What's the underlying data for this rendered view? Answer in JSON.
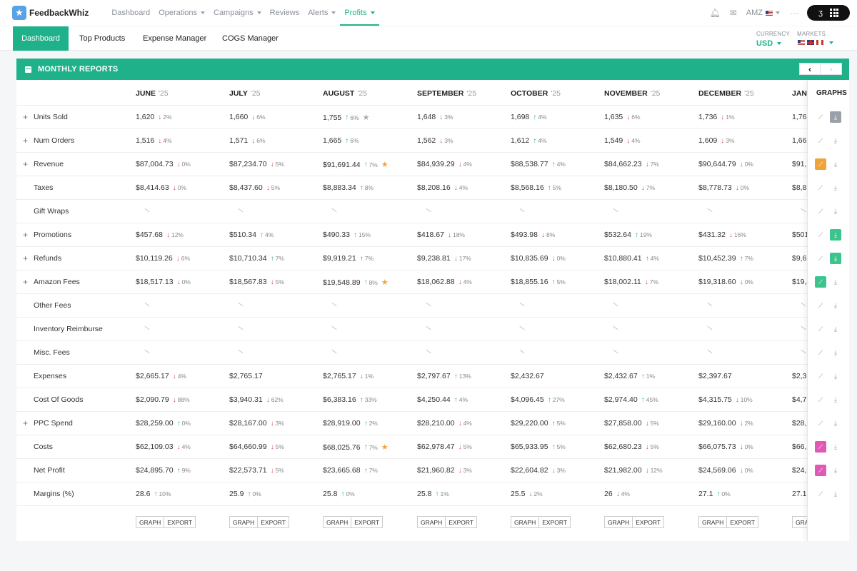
{
  "app": {
    "name": "FeedbackWhiz",
    "logo_icon": "star-icon"
  },
  "nav": {
    "items": [
      {
        "label": "Dashboard",
        "caret": false,
        "active": false
      },
      {
        "label": "Operations",
        "caret": true,
        "active": false
      },
      {
        "label": "Campaigns",
        "caret": true,
        "active": false
      },
      {
        "label": "Reviews",
        "caret": false,
        "active": false
      },
      {
        "label": "Alerts",
        "caret": true,
        "active": false
      },
      {
        "label": "Profits",
        "caret": true,
        "active": true
      }
    ],
    "account": "AMZ",
    "more": "···"
  },
  "subnav": {
    "tabs": [
      "Dashboard",
      "Top Products",
      "Expense Manager",
      "COGS Manager"
    ],
    "active_index": 0,
    "currency_label": "CURRENCY",
    "currency_value": "USD",
    "markets_label": "MARKETS"
  },
  "panel": {
    "title": "MONTHLY REPORTS",
    "prev": "‹",
    "next": "›",
    "graphs_header": "GRAPHS"
  },
  "months": [
    {
      "name": "JUNE",
      "year": "'25"
    },
    {
      "name": "JULY",
      "year": "'25"
    },
    {
      "name": "AUGUST",
      "year": "'25"
    },
    {
      "name": "SEPTEMBER",
      "year": "'25"
    },
    {
      "name": "OCTOBER",
      "year": "'25"
    },
    {
      "name": "NOVEMBER",
      "year": "'25"
    },
    {
      "name": "DECEMBER",
      "year": "'25"
    },
    {
      "name": "JANU",
      "year": ""
    }
  ],
  "rows": [
    {
      "label": "Units Sold",
      "expandable": true,
      "cells": [
        {
          "v": "1,620",
          "d": "down",
          "p": "2%"
        },
        {
          "v": "1,660",
          "d": "down",
          "p": "6%"
        },
        {
          "v": "1,755",
          "d": "up",
          "p": "6%",
          "star": "grey"
        },
        {
          "v": "1,648",
          "d": "down",
          "p": "3%"
        },
        {
          "v": "1,698",
          "d": "up",
          "p": "4%"
        },
        {
          "v": "1,635",
          "d": "down",
          "p": "6%"
        },
        {
          "v": "1,736",
          "d": "down",
          "p": "1%"
        },
        {
          "v": "1,76"
        }
      ]
    },
    {
      "label": "Num Orders",
      "expandable": true,
      "cells": [
        {
          "v": "1,516",
          "d": "down",
          "p": "4%"
        },
        {
          "v": "1,571",
          "d": "down",
          "p": "6%"
        },
        {
          "v": "1,665",
          "d": "up",
          "p": "6%"
        },
        {
          "v": "1,562",
          "d": "down",
          "p": "3%"
        },
        {
          "v": "1,612",
          "d": "up",
          "p": "4%"
        },
        {
          "v": "1,549",
          "d": "down",
          "p": "4%"
        },
        {
          "v": "1,609",
          "d": "down",
          "p": "3%"
        },
        {
          "v": "1,66"
        }
      ]
    },
    {
      "label": "Revenue",
      "expandable": true,
      "cells": [
        {
          "v": "$87,004.73",
          "d": "down",
          "p": "0%"
        },
        {
          "v": "$87,234.70",
          "d": "down",
          "p": "5%"
        },
        {
          "v": "$91,691.44",
          "d": "up",
          "p": "7%",
          "star": "gold"
        },
        {
          "v": "$84,939.29",
          "d": "down",
          "p": "4%"
        },
        {
          "v": "$88,538.77",
          "d": "up",
          "p": "4%"
        },
        {
          "v": "$84,662.23",
          "d": "down",
          "p": "7%"
        },
        {
          "v": "$90,644.79",
          "d": "down",
          "p": "0%"
        },
        {
          "v": "$91,"
        }
      ]
    },
    {
      "label": "Taxes",
      "expandable": false,
      "cells": [
        {
          "v": "$8,414.63",
          "d": "down",
          "p": "0%"
        },
        {
          "v": "$8,437.60",
          "d": "down",
          "p": "5%"
        },
        {
          "v": "$8,883.34",
          "d": "up",
          "p": "8%"
        },
        {
          "v": "$8,208.16",
          "d": "down",
          "p": "4%"
        },
        {
          "v": "$8,568.16",
          "d": "up",
          "p": "5%"
        },
        {
          "v": "$8,180.50",
          "d": "down",
          "p": "7%"
        },
        {
          "v": "$8,778.73",
          "d": "down",
          "p": "0%"
        },
        {
          "v": "$8,8"
        }
      ]
    },
    {
      "label": "Gift Wraps",
      "expandable": false,
      "nodata": true,
      "cells": []
    },
    {
      "label": "Promotions",
      "expandable": true,
      "cells": [
        {
          "v": "$457.68",
          "d": "down",
          "p": "12%"
        },
        {
          "v": "$510.34",
          "d": "up",
          "p": "4%"
        },
        {
          "v": "$490.33",
          "d": "up",
          "p": "15%"
        },
        {
          "v": "$418.67",
          "d": "down",
          "p": "18%"
        },
        {
          "v": "$493.98",
          "d": "down",
          "p": "8%"
        },
        {
          "v": "$532.64",
          "d": "up",
          "p": "19%"
        },
        {
          "v": "$431.32",
          "d": "down",
          "p": "16%"
        },
        {
          "v": "$501"
        }
      ]
    },
    {
      "label": "Refunds",
      "expandable": true,
      "cells": [
        {
          "v": "$10,119.26",
          "d": "down",
          "p": "6%"
        },
        {
          "v": "$10,710.34",
          "d": "up",
          "p": "7%"
        },
        {
          "v": "$9,919.21",
          "d": "up",
          "p": "7%"
        },
        {
          "v": "$9,238.81",
          "d": "down",
          "p": "17%"
        },
        {
          "v": "$10,835.69",
          "d": "down",
          "p": "0%"
        },
        {
          "v": "$10,880.41",
          "d": "up",
          "p": "4%"
        },
        {
          "v": "$10,452.39",
          "d": "up",
          "p": "7%"
        },
        {
          "v": "$9,6"
        }
      ]
    },
    {
      "label": "Amazon Fees",
      "expandable": true,
      "cells": [
        {
          "v": "$18,517.13",
          "d": "down",
          "p": "0%"
        },
        {
          "v": "$18,567.83",
          "d": "down",
          "p": "5%"
        },
        {
          "v": "$19,548.89",
          "d": "up",
          "p": "8%",
          "star": "gold"
        },
        {
          "v": "$18,062.88",
          "d": "down",
          "p": "4%"
        },
        {
          "v": "$18,855.16",
          "d": "up",
          "p": "5%"
        },
        {
          "v": "$18,002.11",
          "d": "down",
          "p": "7%"
        },
        {
          "v": "$19,318.60",
          "d": "down",
          "p": "0%"
        },
        {
          "v": "$19,4"
        }
      ]
    },
    {
      "label": "Other Fees",
      "expandable": false,
      "nodata": true,
      "cells": []
    },
    {
      "label": "Inventory Reimburse",
      "expandable": false,
      "nodata": true,
      "cells": []
    },
    {
      "label": "Misc. Fees",
      "expandable": false,
      "nodata": true,
      "cells": []
    },
    {
      "label": "Expenses",
      "expandable": false,
      "cells": [
        {
          "v": "$2,665.17",
          "d": "down",
          "p": "4%"
        },
        {
          "v": "$2,765.17"
        },
        {
          "v": "$2,765.17",
          "d": "down",
          "p": "1%"
        },
        {
          "v": "$2,797.67",
          "d": "up",
          "p": "13%"
        },
        {
          "v": "$2,432.67"
        },
        {
          "v": "$2,432.67",
          "d": "up",
          "p": "1%"
        },
        {
          "v": "$2,397.67"
        },
        {
          "v": "$2,3"
        }
      ]
    },
    {
      "label": "Cost Of Goods",
      "expandable": false,
      "cells": [
        {
          "v": "$2,090.79",
          "d": "down",
          "p": "88%"
        },
        {
          "v": "$3,940.31",
          "d": "down",
          "p": "62%"
        },
        {
          "v": "$6,383.16",
          "d": "up",
          "p": "33%"
        },
        {
          "v": "$4,250.44",
          "d": "up",
          "p": "4%"
        },
        {
          "v": "$4,096.45",
          "d": "up",
          "p": "27%"
        },
        {
          "v": "$2,974.40",
          "d": "up",
          "p": "45%"
        },
        {
          "v": "$4,315.75",
          "d": "down",
          "p": "10%"
        },
        {
          "v": "$4,7"
        }
      ]
    },
    {
      "label": "PPC Spend",
      "expandable": true,
      "cells": [
        {
          "v": "$28,259.00",
          "d": "up",
          "p": "0%"
        },
        {
          "v": "$28,167.00",
          "d": "down",
          "p": "3%"
        },
        {
          "v": "$28,919.00",
          "d": "up",
          "p": "2%"
        },
        {
          "v": "$28,210.00",
          "d": "down",
          "p": "4%"
        },
        {
          "v": "$29,220.00",
          "d": "up",
          "p": "5%"
        },
        {
          "v": "$27,858.00",
          "d": "down",
          "p": "5%"
        },
        {
          "v": "$29,160.00",
          "d": "down",
          "p": "2%"
        },
        {
          "v": "$28,"
        }
      ]
    },
    {
      "label": "Costs",
      "expandable": false,
      "cells": [
        {
          "v": "$62,109.03",
          "d": "down",
          "p": "4%"
        },
        {
          "v": "$64,660.99",
          "d": "down",
          "p": "5%"
        },
        {
          "v": "$68,025.76",
          "d": "up",
          "p": "7%",
          "star": "gold"
        },
        {
          "v": "$62,978.47",
          "d": "down",
          "p": "5%"
        },
        {
          "v": "$65,933.95",
          "d": "up",
          "p": "5%"
        },
        {
          "v": "$62,680.23",
          "d": "down",
          "p": "5%"
        },
        {
          "v": "$66,075.73",
          "d": "down",
          "p": "0%"
        },
        {
          "v": "$66,3"
        }
      ]
    },
    {
      "label": "Net Profit",
      "expandable": false,
      "cells": [
        {
          "v": "$24,895.70",
          "d": "up",
          "p": "9%"
        },
        {
          "v": "$22,573.71",
          "d": "down",
          "p": "5%"
        },
        {
          "v": "$23,665.68",
          "d": "up",
          "p": "7%"
        },
        {
          "v": "$21,960.82",
          "d": "down",
          "p": "3%"
        },
        {
          "v": "$22,604.82",
          "d": "down",
          "p": "3%"
        },
        {
          "v": "$21,982.00",
          "d": "down",
          "p": "12%"
        },
        {
          "v": "$24,569.06",
          "d": "down",
          "p": "0%"
        },
        {
          "v": "$24,6"
        }
      ]
    },
    {
      "label": "Margins (%)",
      "expandable": false,
      "cells": [
        {
          "v": "28.6",
          "d": "up",
          "p": "10%"
        },
        {
          "v": "25.9",
          "d": "up",
          "p": "0%"
        },
        {
          "v": "25.8",
          "d": "up",
          "p": "0%"
        },
        {
          "v": "25.8",
          "d": "up",
          "p": "1%"
        },
        {
          "v": "25.5",
          "d": "down",
          "p": "2%"
        },
        {
          "v": "26",
          "d": "down",
          "p": "4%"
        },
        {
          "v": "27.1",
          "d": "up",
          "p": "0%"
        },
        {
          "v": "27.1"
        }
      ]
    }
  ],
  "graph_icons": [
    {
      "trend": "none",
      "dl": "solid-grey"
    },
    {
      "trend": "none",
      "dl": "none"
    },
    {
      "trend": "orange",
      "dl": "none"
    },
    {
      "trend": "none",
      "dl": "none"
    },
    {
      "trend": "none",
      "dl": "none"
    },
    {
      "trend": "none",
      "dl": "green"
    },
    {
      "trend": "none",
      "dl": "green"
    },
    {
      "trend": "green",
      "dl": "none"
    },
    {
      "trend": "none",
      "dl": "none"
    },
    {
      "trend": "none",
      "dl": "none"
    },
    {
      "trend": "none",
      "dl": "none"
    },
    {
      "trend": "none",
      "dl": "none"
    },
    {
      "trend": "none",
      "dl": "none"
    },
    {
      "trend": "none",
      "dl": "none"
    },
    {
      "trend": "pink",
      "dl": "none"
    },
    {
      "trend": "pink",
      "dl": "none"
    },
    {
      "trend": "none",
      "dl": "none"
    }
  ],
  "footer_buttons": {
    "graph": "GRAPH",
    "export": "EXPORT"
  },
  "colors": {
    "accent": "#1fb28a",
    "up": "#1fb28a",
    "down": "#d9534f",
    "star": "#f0a33a",
    "orange_icon": "#f0a33a",
    "green_icon": "#3cc48c",
    "pink_icon": "#e05ab5"
  }
}
